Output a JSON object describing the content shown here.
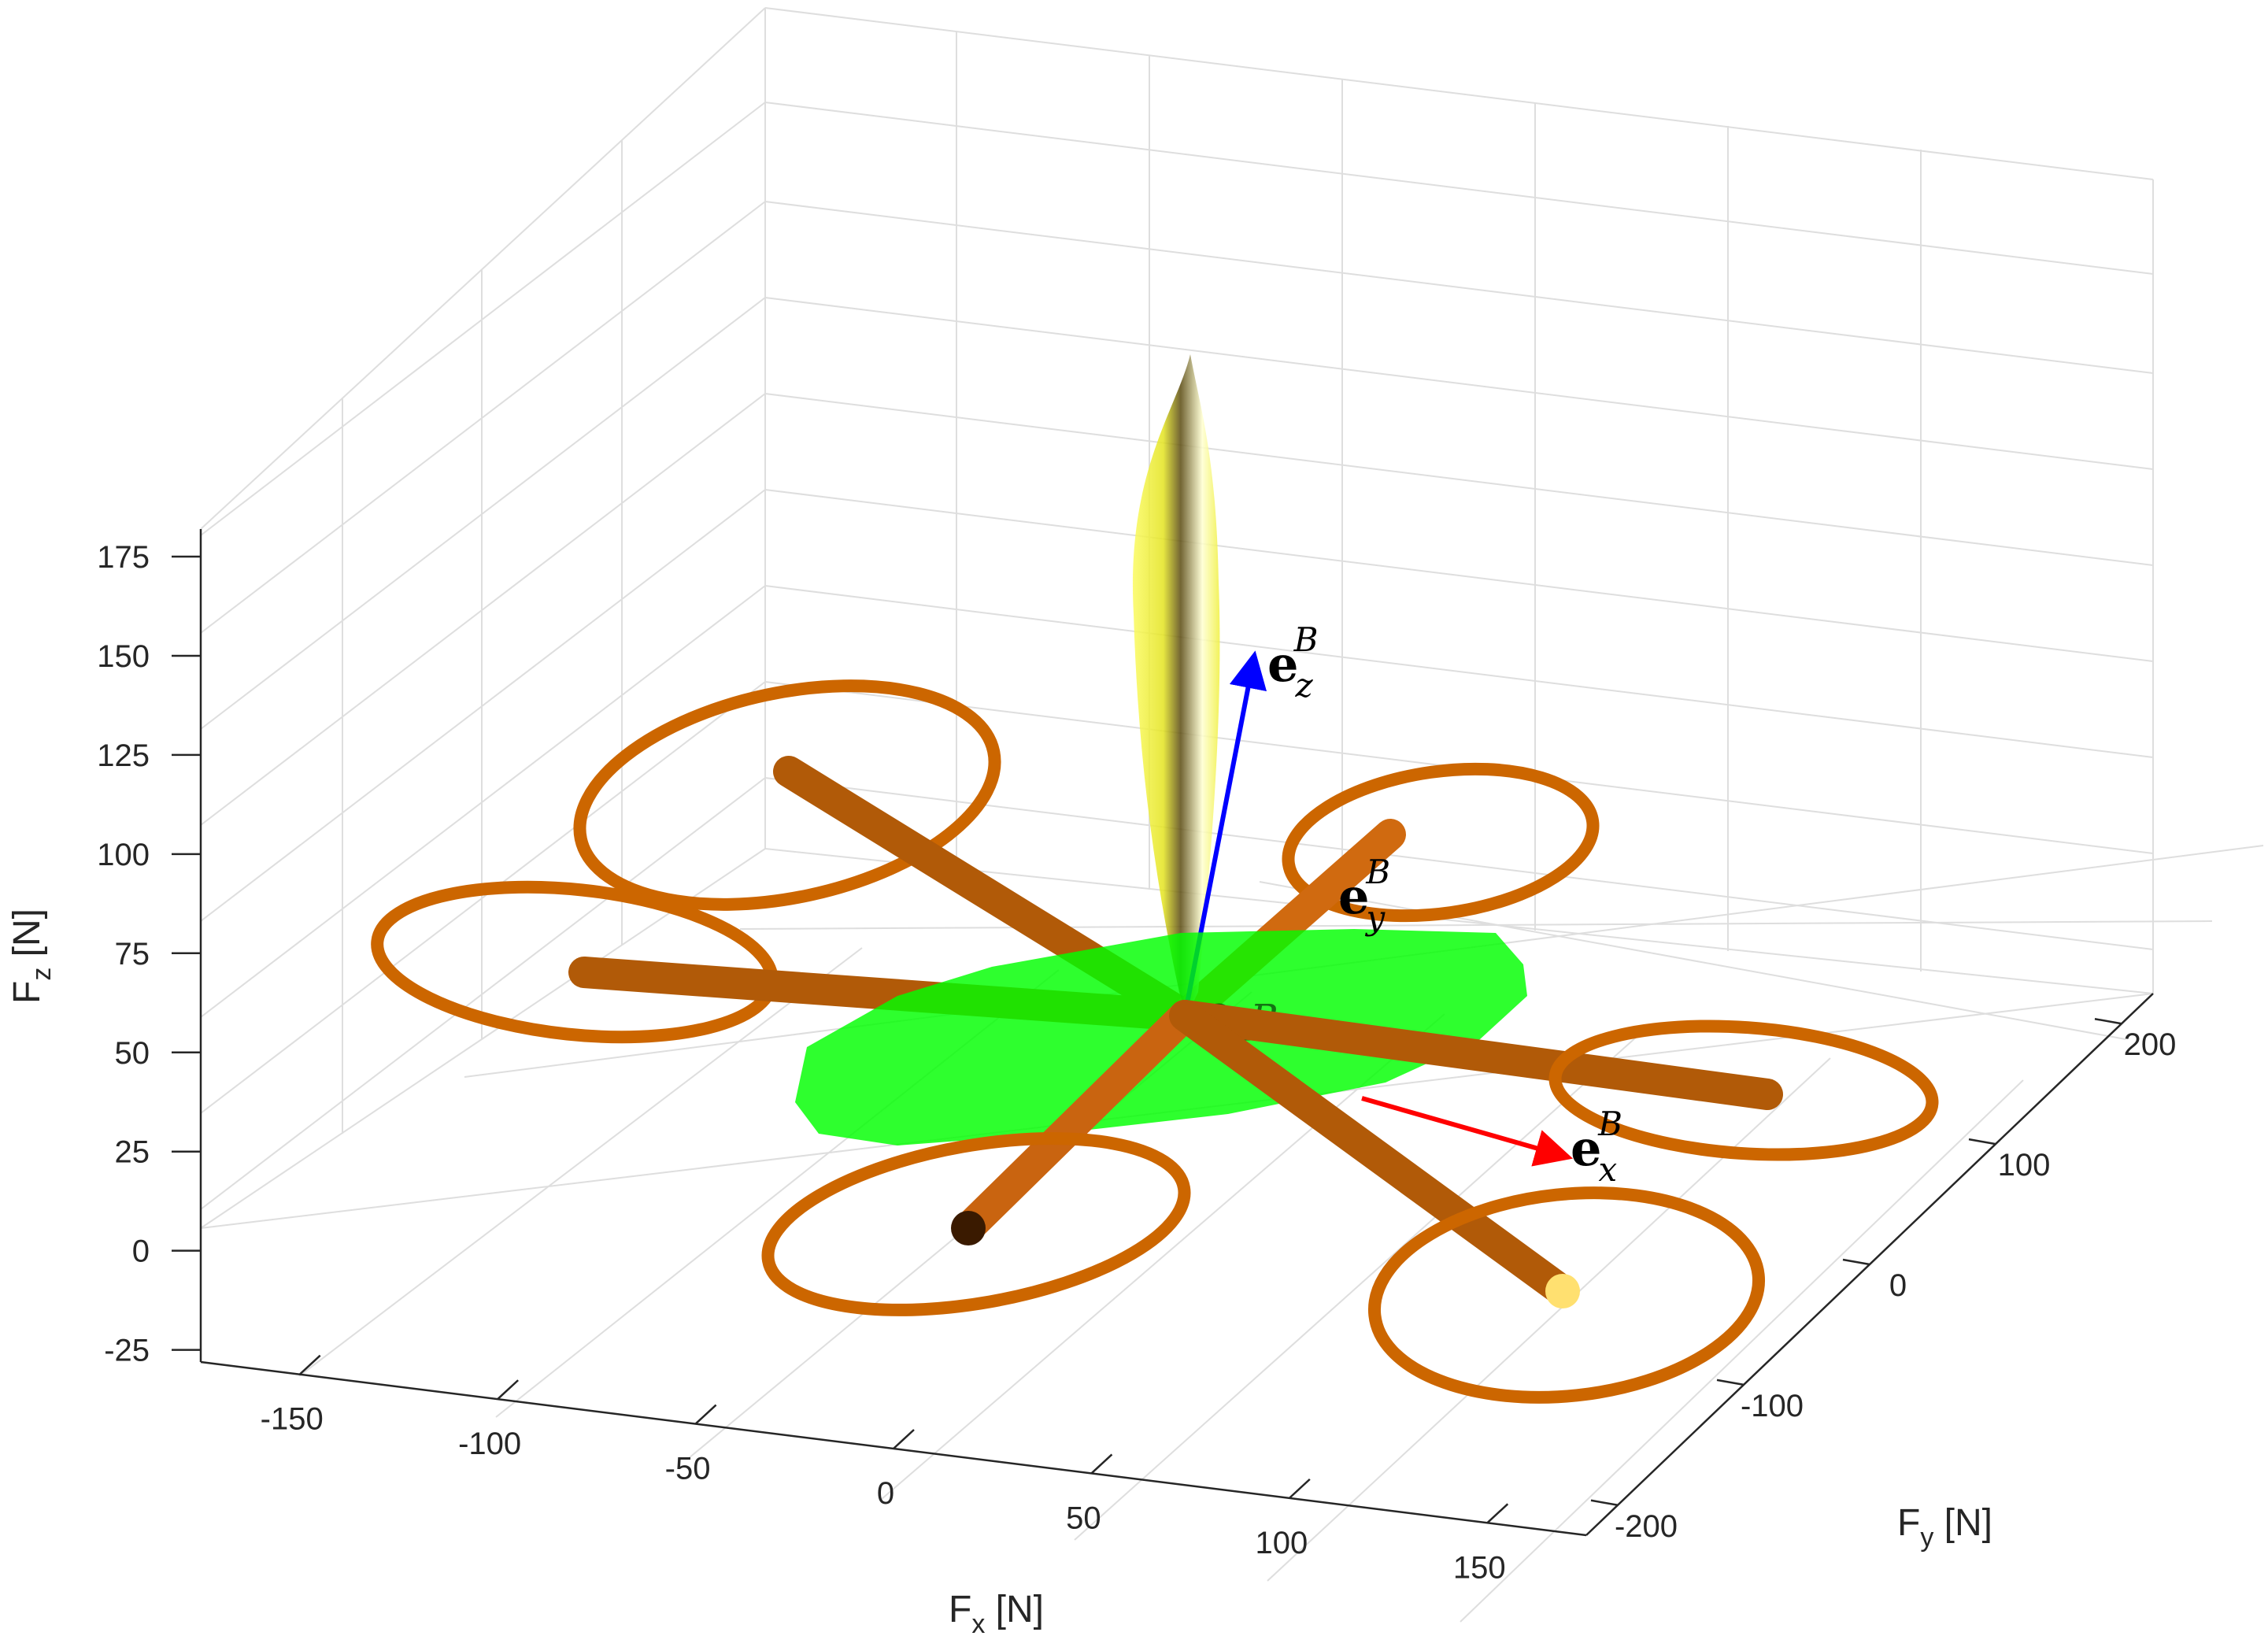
{
  "chart_data": {
    "type": "scatter",
    "title": "",
    "xlabel": {
      "base": "F",
      "sub": "x",
      "unit": " [N]"
    },
    "ylabel": {
      "base": "F",
      "sub": "y",
      "unit": " [N]"
    },
    "zlabel": {
      "base": "F",
      "sub": "z",
      "unit": " [N]"
    },
    "xlim": [
      -175,
      175
    ],
    "ylim": [
      -225,
      225
    ],
    "zlim": [
      -35,
      175
    ],
    "x_ticks": [
      "-150",
      "-100",
      "-50",
      "0",
      "50",
      "100",
      "150"
    ],
    "y_ticks": [
      "-200",
      "-100",
      "0",
      "100",
      "200"
    ],
    "z_ticks": [
      "-25",
      "0",
      "25",
      "50",
      "75",
      "100",
      "125",
      "150",
      "175"
    ],
    "grid": true,
    "vectors": [
      {
        "name": "e_z^B",
        "base": "e",
        "sub": "z",
        "sup": "B",
        "color": "#0000ff"
      },
      {
        "name": "e_x^B",
        "base": "e",
        "sub": "x",
        "sup": "B",
        "color": "#ff0000"
      },
      {
        "name": "e_y^B",
        "base": "e",
        "sub": "y",
        "sup": "B",
        "color": "#000000"
      }
    ],
    "origin_label": "O_B",
    "surfaces": [
      {
        "name": "vertical-force-envelope",
        "color": "#e6e600"
      },
      {
        "name": "horizontal-force-envelope",
        "color": "#00ff00"
      }
    ],
    "body_color": "#cc6600"
  }
}
